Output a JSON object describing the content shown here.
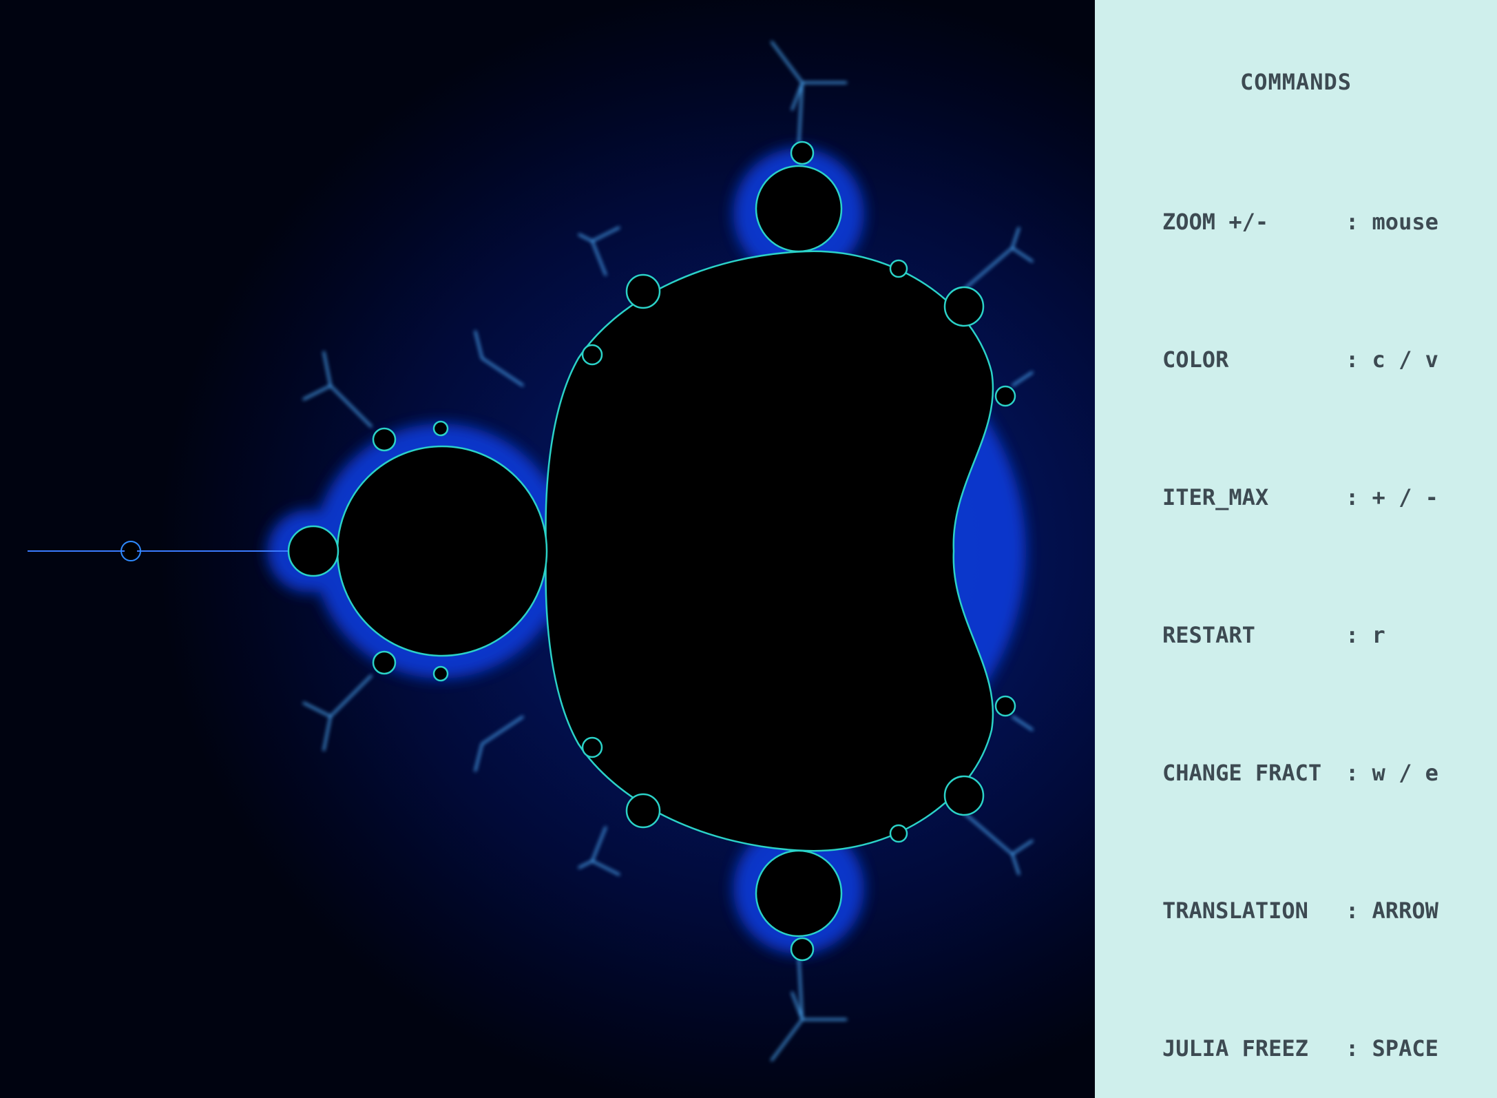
{
  "panel": {
    "title": "COMMANDS",
    "commands": [
      {
        "key": "ZOOM +/-",
        "value": ": mouse"
      },
      {
        "key": "COLOR",
        "value": ": c / v"
      },
      {
        "key": "ITER_MAX",
        "value": ": + / -"
      },
      {
        "key": "RESTART",
        "value": ": r"
      },
      {
        "key": "CHANGE FRACT",
        "value": ": w / e"
      },
      {
        "key": "TRANSLATION",
        "value": ": ARROW"
      },
      {
        "key": "JULIA FREEZ",
        "value": ": SPACE"
      }
    ]
  },
  "colors": {
    "panel_bg": "#cfefec",
    "panel_text": "#3d4a52",
    "set_interior": "#000000",
    "glow_inner": "#3aa0ff",
    "glow_outer": "#0b2fd0"
  },
  "fractal": {
    "type": "mandelbrot"
  }
}
